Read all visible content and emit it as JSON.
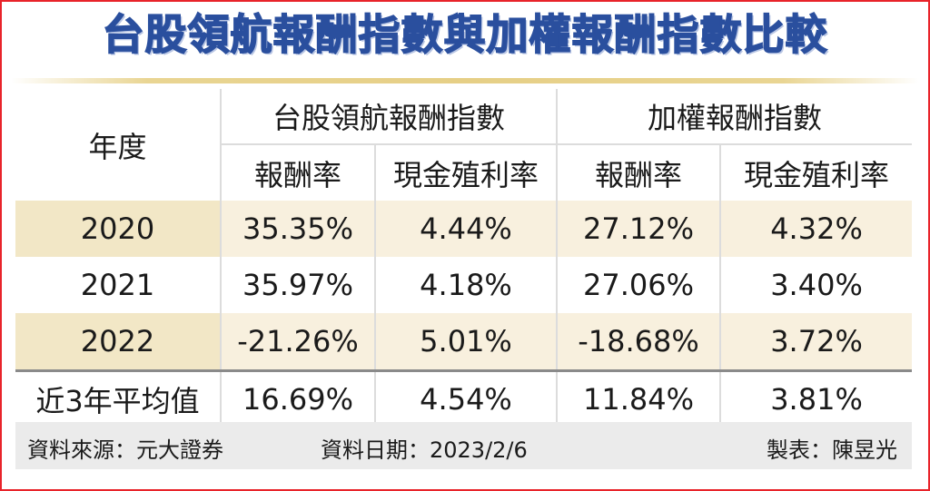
{
  "title": "台股領航報酬指數與加權報酬指數比較",
  "table": {
    "year_header": "年度",
    "groups": [
      "台股領航報酬指數",
      "加權報酬指數"
    ],
    "subheaders": [
      "報酬率",
      "現金殖利率",
      "報酬率",
      "現金殖利率"
    ],
    "rows": [
      {
        "label": "2020",
        "values": [
          "35.35%",
          "4.44%",
          "27.12%",
          "4.32%"
        ]
      },
      {
        "label": "2021",
        "values": [
          "35.97%",
          "4.18%",
          "27.06%",
          "3.40%"
        ]
      },
      {
        "label": "2022",
        "values": [
          "-21.26%",
          "5.01%",
          "-18.68%",
          "3.72%"
        ]
      },
      {
        "label": "近3年平均值",
        "values": [
          "16.69%",
          "4.54%",
          "11.84%",
          "3.81%"
        ]
      }
    ]
  },
  "footer": {
    "source": "資料來源：元大證券",
    "date": "資料日期：2023/2/6",
    "maker": "製表：陳昱光"
  },
  "colors": {
    "title": "#2a4f9e",
    "border": "#e8232a",
    "row_shade": "#f8f0de",
    "footer_bg": "#ebebeb"
  }
}
